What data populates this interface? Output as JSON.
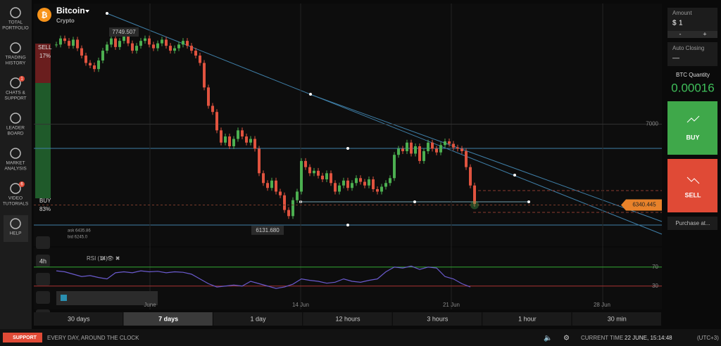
{
  "header": {
    "title": "Bitcoin",
    "subtitle": "Crypto"
  },
  "sidebar": [
    [
      "TOTAL",
      "PORTFOLIO"
    ],
    [
      "TRADING",
      "HISTORY"
    ],
    [
      "CHATS &",
      "SUPPORT"
    ],
    [
      "LEADER",
      "BOARD"
    ],
    [
      "MARKET",
      "ANALYSIS"
    ],
    [
      "VIDEO",
      "TUTORIALS"
    ],
    [
      "HELP"
    ]
  ],
  "sidebar_badges": [
    "1",
    "6"
  ],
  "sentiment": {
    "sell_label": "SELL",
    "sell_pct": "17%",
    "buy_label": "BUY",
    "buy_pct": "83%"
  },
  "chart": {
    "quote": {
      "ask": "ask 6435.86",
      "bid": "bid 6245.0"
    },
    "price_ylim": [
      6005,
      7985
    ],
    "price_ticks": [
      7000
    ],
    "high": 7749.507,
    "low": {
      "value": 6131.68,
      "label": "6131.680"
    },
    "current_price": 6340.445,
    "closes": [
      7650,
      7700,
      7680,
      7640,
      7690,
      7620,
      7560,
      7500,
      7480,
      7450,
      7520,
      7600,
      7650,
      7700,
      7630,
      7680,
      7720,
      7660,
      7600,
      7640,
      7680,
      7700,
      7650,
      7620,
      7660,
      7690,
      7640,
      7600,
      7620,
      7650,
      7680,
      7640,
      7600,
      7560,
      7500,
      7300,
      7150,
      7100,
      6950,
      6850,
      6900,
      6820,
      6880,
      6950,
      6900,
      6850,
      6880,
      6800,
      6600,
      6520,
      6480,
      6540,
      6450,
      6420,
      6300,
      6250,
      6380,
      6450,
      6700,
      6650,
      6600,
      6620,
      6580,
      6550,
      6600,
      6520,
      6450,
      6500,
      6540,
      6480,
      6520,
      6560,
      6530,
      6500,
      6550,
      6470,
      6450,
      6490,
      6520,
      6560,
      6750,
      6800,
      6780,
      6850,
      6760,
      6820,
      6700,
      6780,
      6850,
      6800,
      6770,
      6830,
      6860,
      6840,
      6810,
      6800,
      6780,
      6650,
      6500,
      6350
    ],
    "x_labels": [
      "June",
      "14 Jun",
      "21 Jun",
      "28 Jun"
    ]
  },
  "rsi": {
    "label": "RSI (14)",
    "ylim": [
      0,
      100
    ],
    "yticks": [
      70,
      30
    ],
    "values": [
      62,
      60,
      55,
      50,
      52,
      48,
      45,
      58,
      60,
      58,
      62,
      60,
      61,
      58,
      60,
      59,
      55,
      45,
      35,
      28,
      30,
      32,
      30,
      40,
      35,
      30,
      25,
      28,
      34,
      45,
      42,
      40,
      36,
      38,
      45,
      40,
      38,
      42,
      45,
      60,
      70,
      68,
      72,
      65,
      70,
      68,
      50,
      45,
      35,
      28
    ]
  },
  "toolbar": {
    "interval": "4h"
  },
  "timeframes": [
    "30 days",
    "7 days",
    "1 day",
    "12 hours",
    "3 hours",
    "1 hour",
    "30 min"
  ],
  "selected_timeframe": 1,
  "trade_panel": {
    "amount_label": "Amount",
    "amount_currency": "$",
    "amount_value": "1",
    "minus": "-",
    "plus": "+",
    "auto_closing_label": "Auto Closing",
    "auto_closing_value": "—",
    "quantity_label": "BTC Quantity",
    "quantity": 0.00016,
    "buy": "BUY",
    "sell": "SELL",
    "purchase_at": "Purchase at..."
  },
  "footer": {
    "support": "SUPPORT",
    "tagline": "EVERY DAY, AROUND THE CLOCK",
    "time_label": "CURRENT TIME",
    "time": "22 JUNE, 15:14:48",
    "timezone": "(UTC+3)"
  }
}
